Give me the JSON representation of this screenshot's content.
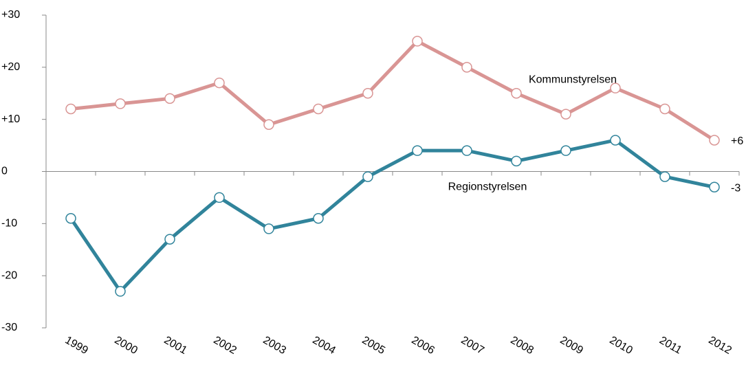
{
  "chart_data": {
    "type": "line",
    "categories": [
      "1999",
      "2000",
      "2001",
      "2002",
      "2003",
      "2004",
      "2005",
      "2006",
      "2007",
      "2008",
      "2009",
      "2010",
      "2011",
      "2012"
    ],
    "series": [
      {
        "name": "Kommunstyrelsen",
        "color": "#d99594",
        "values": [
          12,
          13,
          14,
          17,
          9,
          12,
          15,
          25,
          20,
          15,
          11,
          16,
          12,
          6
        ],
        "value_labels": [
          null,
          null,
          null,
          null,
          null,
          null,
          null,
          null,
          null,
          null,
          null,
          null,
          null,
          "+6"
        ]
      },
      {
        "name": "Regionstyrelsen",
        "color": "#31849b",
        "values": [
          -9,
          -23,
          -13,
          -5,
          -11,
          -9,
          -1,
          4,
          4,
          2,
          4,
          6,
          -1,
          -3
        ],
        "value_labels": [
          null,
          null,
          null,
          null,
          null,
          null,
          null,
          null,
          null,
          null,
          null,
          null,
          null,
          "-3"
        ]
      }
    ],
    "ylim": [
      -30,
      30
    ],
    "yticks": [
      {
        "value": 30,
        "label": "+30"
      },
      {
        "value": 20,
        "label": "+20"
      },
      {
        "value": 10,
        "label": "+10"
      },
      0,
      -10,
      -20,
      -30
    ]
  }
}
